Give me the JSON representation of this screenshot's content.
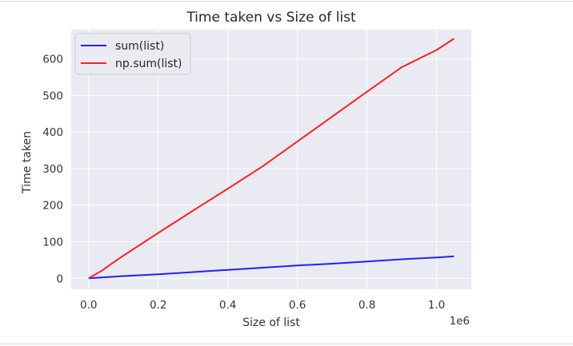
{
  "chart_data": {
    "type": "line",
    "title": "Time taken vs Size of list",
    "xlabel": "Size of list",
    "ylabel": "Time taken",
    "x_offset_label": "1e6",
    "xlim": [
      -0.05,
      1.1
    ],
    "ylim": [
      -30,
      680
    ],
    "x_ticks": [
      0.0,
      0.2,
      0.4,
      0.6,
      0.8,
      1.0
    ],
    "x_tick_labels": [
      "0.0",
      "0.2",
      "0.4",
      "0.6",
      "0.8",
      "1.0"
    ],
    "y_ticks": [
      0,
      100,
      200,
      300,
      400,
      500,
      600
    ],
    "y_tick_labels": [
      "0",
      "100",
      "200",
      "300",
      "400",
      "500",
      "600"
    ],
    "grid": true,
    "legend_position": "top-left",
    "series": [
      {
        "name": "sum(list)",
        "color": "#2020ff",
        "x": [
          0.0,
          0.1,
          0.2,
          0.3,
          0.4,
          0.5,
          0.6,
          0.7,
          0.8,
          0.9,
          1.0,
          1.05
        ],
        "y": [
          0,
          6,
          11,
          17,
          23,
          29,
          35,
          40,
          46,
          52,
          57,
          60
        ]
      },
      {
        "name": "np.sum(list)",
        "color": "#ff2020",
        "x": [
          0.0,
          0.02,
          0.04,
          0.06,
          0.1,
          0.2,
          0.3,
          0.4,
          0.5,
          0.6,
          0.7,
          0.8,
          0.9,
          1.0,
          1.05
        ],
        "y": [
          0,
          11,
          22,
          36,
          62,
          124,
          185,
          245,
          306,
          374,
          442,
          510,
          577,
          624,
          655
        ]
      }
    ]
  }
}
